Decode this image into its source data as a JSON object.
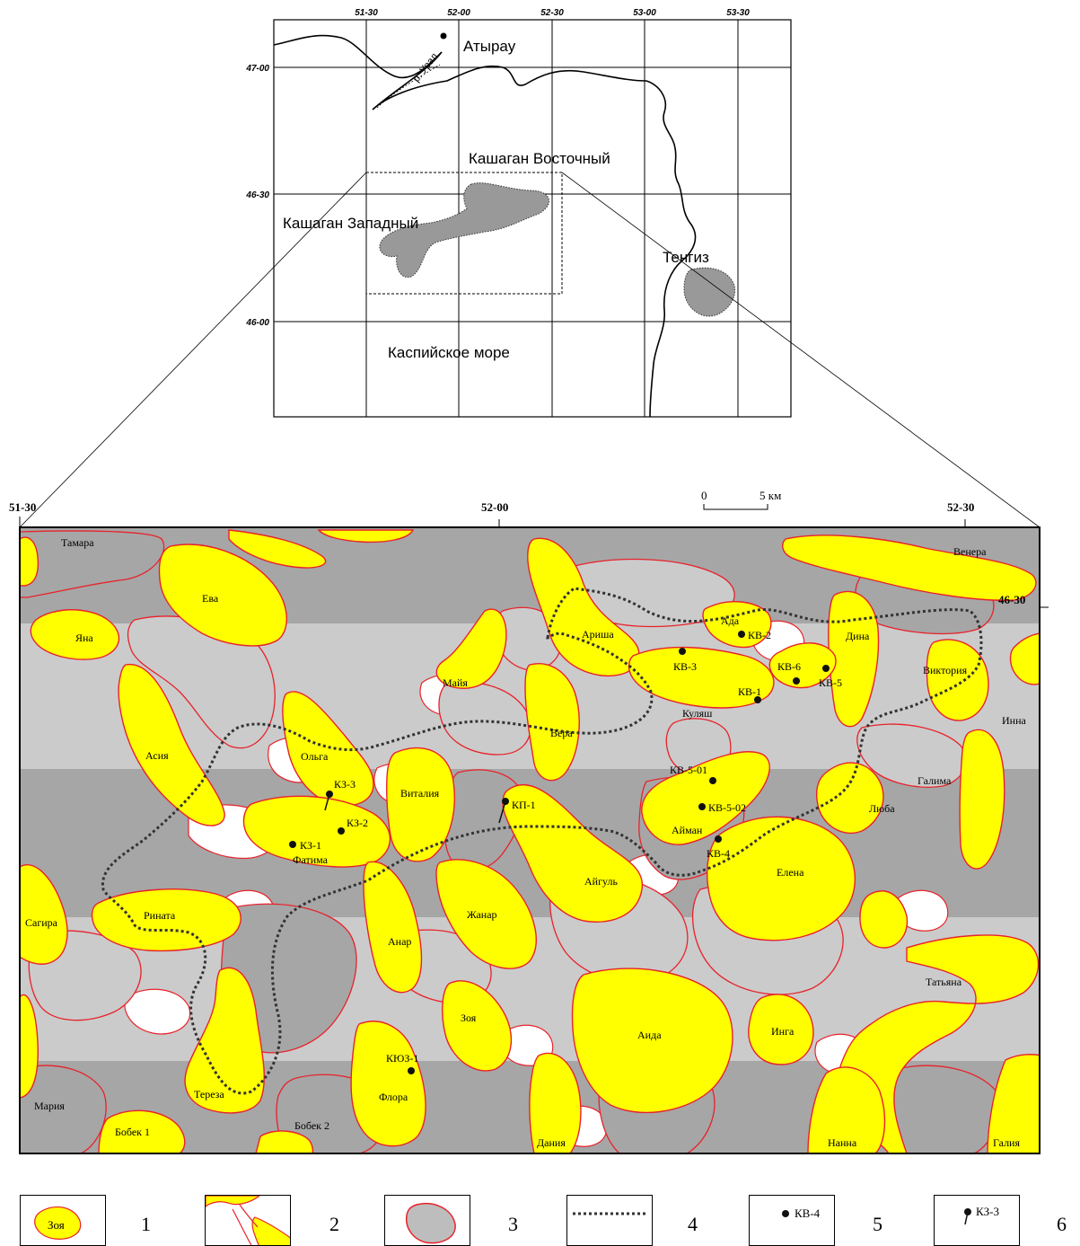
{
  "overview": {
    "lon_ticks": [
      "51-30",
      "52-00",
      "52-30",
      "53-00",
      "53-30"
    ],
    "lat_ticks": [
      "47-00",
      "46-30",
      "46-00"
    ],
    "labels": {
      "atyrau": "Атырау",
      "ural": "р. Урал",
      "kashagan_east": "Кашаган Восточный",
      "kashagan_west": "Кашаган Западный",
      "tengiz": "Тенгиз",
      "caspian": "Каспийское море"
    }
  },
  "detail": {
    "lon_ticks": [
      "51-30",
      "52-00",
      "52-30"
    ],
    "lat_tick": "46-30",
    "scale": {
      "zero": "0",
      "km": "5 км"
    },
    "structures": [
      "Тамара",
      "Ева",
      "Яна",
      "Майя",
      "Ариша",
      "Ада",
      "Дина",
      "Венера",
      "Виктория",
      "Инна",
      "Вера",
      "Куляш",
      "Ольга",
      "Асия",
      "Виталия",
      "Галима",
      "Люба",
      "Айман",
      "Фатима",
      "Айгуль",
      "Елена",
      "Жанар",
      "Сагира",
      "Рината",
      "Анар",
      "Татьяна",
      "Зоя",
      "Аида",
      "Инга",
      "Тереза",
      "Флора",
      "Мария",
      "Бобек 1",
      "Бобек 2",
      "Дания",
      "Нанна",
      "Галия"
    ],
    "wells": [
      "КВ-2",
      "КВ-3",
      "КВ-6",
      "КВ-5",
      "КВ-1",
      "КВ-5-01",
      "КВ-5-02",
      "КВ-4",
      "КЗ-3",
      "КЗ-2",
      "КЗ-1",
      "КП-1",
      "КЮЗ-1"
    ]
  },
  "legend": [
    {
      "num": "1",
      "sample": "Зоя"
    },
    {
      "num": "2",
      "sample": ""
    },
    {
      "num": "3",
      "sample": ""
    },
    {
      "num": "4",
      "sample": ""
    },
    {
      "num": "5",
      "sample": "КВ-4"
    },
    {
      "num": "6",
      "sample": "КЗ-3"
    }
  ],
  "colors": {
    "yellow": "#ffff00",
    "red": "#e8222b",
    "dark_gray": "#a6a6a6",
    "light_gray": "#cbcbcb"
  }
}
